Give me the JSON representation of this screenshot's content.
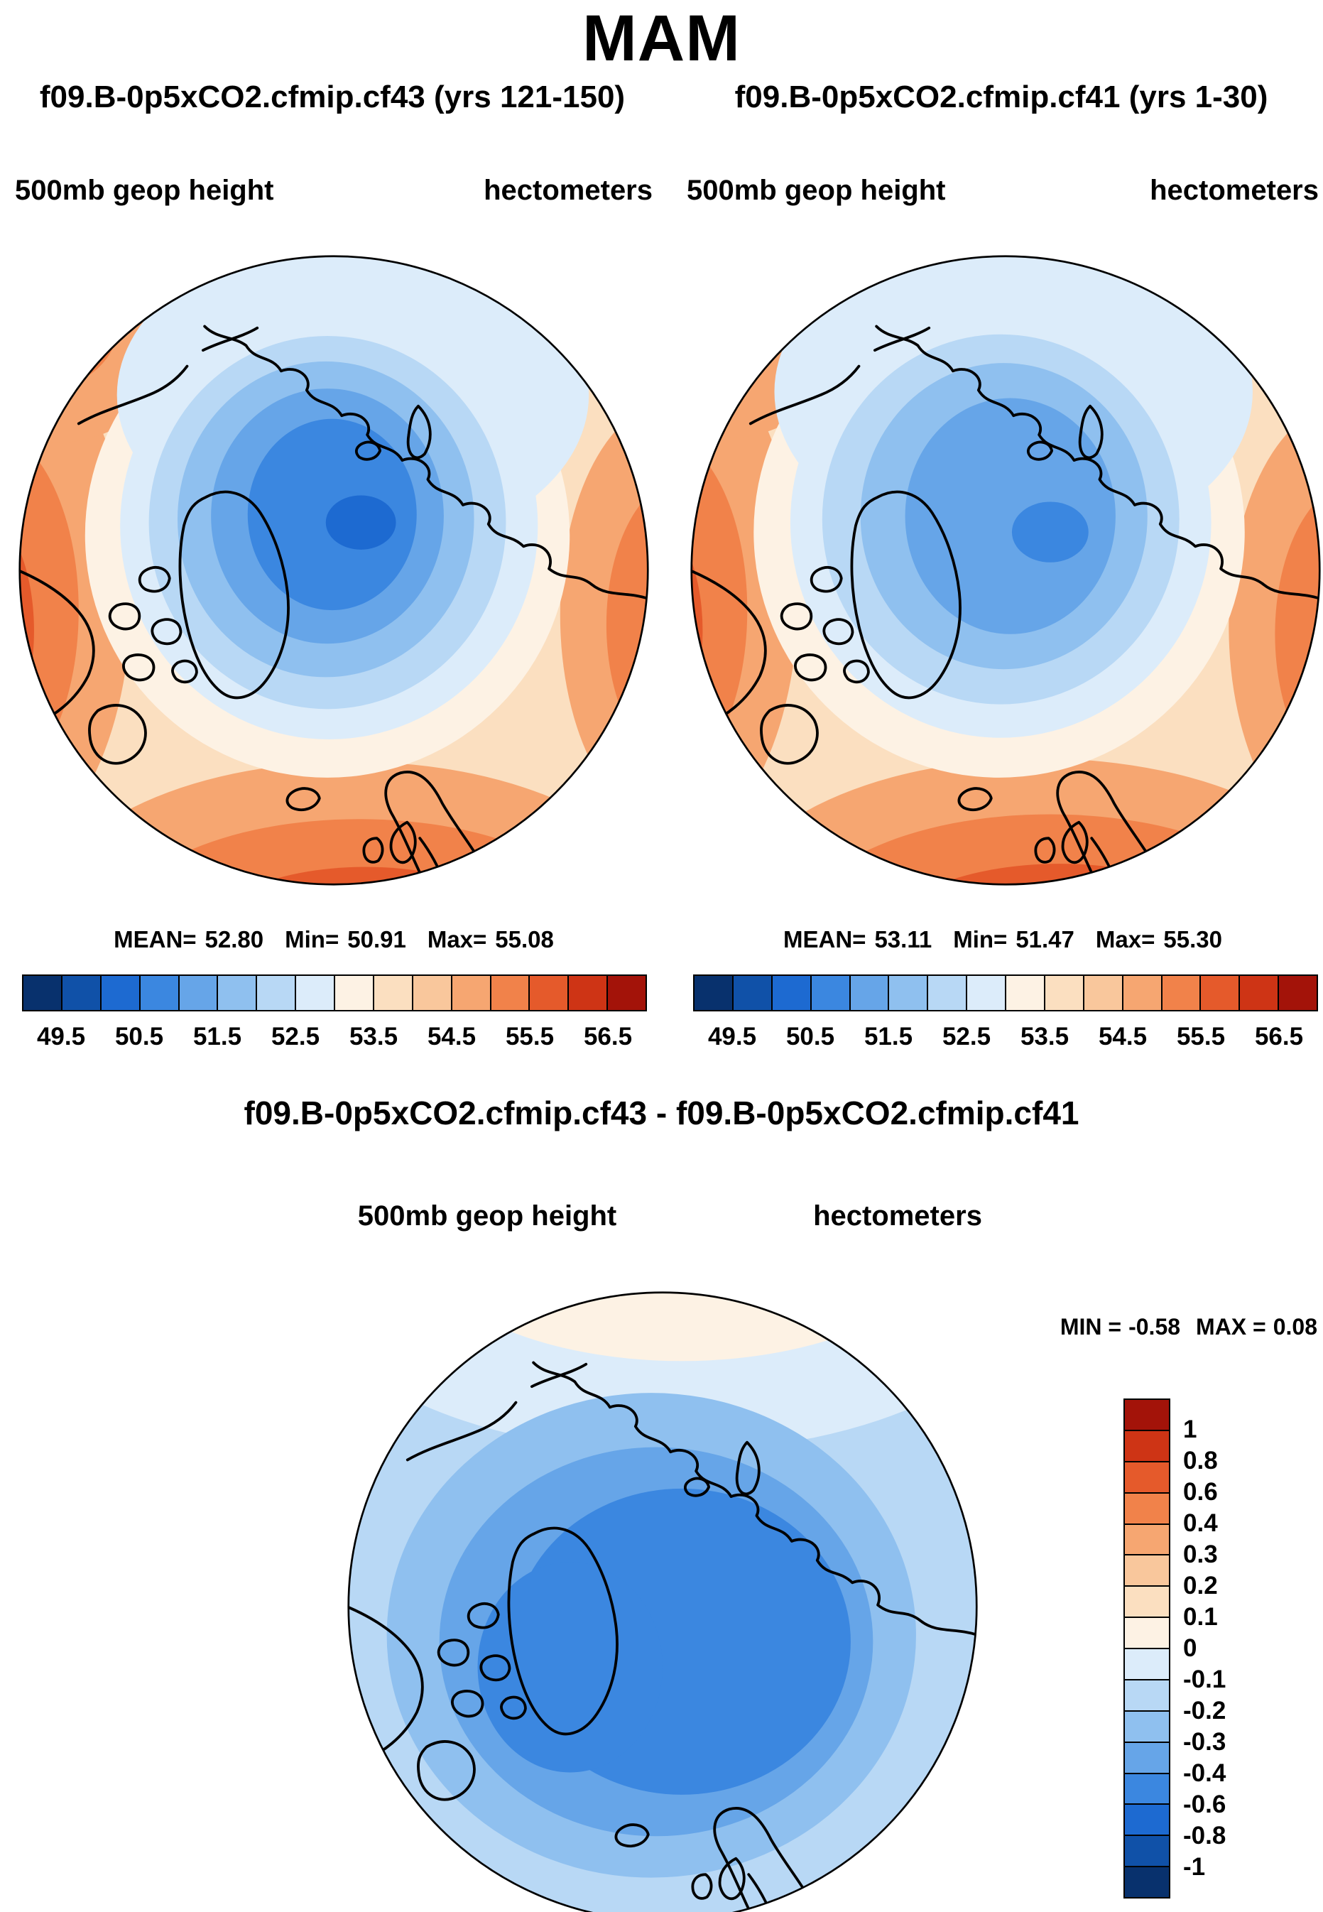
{
  "page_title": "MAM",
  "panels": [
    {
      "subtitle": "f09.B-0p5xCO2.cfmip.cf43 (yrs 121-150)",
      "field_label": "500mb geop height",
      "units_label": "hectometers",
      "stats": {
        "mean_label": "MEAN=",
        "mean": "52.80",
        "min_label": "Min=",
        "min": "50.91",
        "max_label": "Max=",
        "max": "55.08"
      }
    },
    {
      "subtitle": "f09.B-0p5xCO2.cfmip.cf41 (yrs 1-30)",
      "field_label": "500mb geop height",
      "units_label": "hectometers",
      "stats": {
        "mean_label": "MEAN=",
        "mean": "53.11",
        "min_label": "Min=",
        "min": "51.47",
        "max_label": "Max=",
        "max": "55.30"
      }
    }
  ],
  "colorbar": {
    "colors": [
      "#08316d",
      "#1051a8",
      "#1d6ad1",
      "#3b87e0",
      "#66a5e8",
      "#8fc0ef",
      "#b8d8f5",
      "#dcecfa",
      "#fdf2e4",
      "#fbdfc0",
      "#f9c79c",
      "#f6a671",
      "#f1824a",
      "#e55a2b",
      "#ce3415",
      "#a31309"
    ],
    "tick_labels": [
      "49.5",
      "50.5",
      "51.5",
      "52.5",
      "53.5",
      "54.5",
      "55.5",
      "56.5"
    ]
  },
  "diff_panel": {
    "title": "f09.B-0p5xCO2.cfmip.cf43 - f09.B-0p5xCO2.cfmip.cf41",
    "field_label": "500mb geop height",
    "units_label": "hectometers",
    "min_label": "MIN =",
    "min": "-0.58",
    "max_label": "MAX =",
    "max": "0.08",
    "colorbar": {
      "colors": [
        "#a31309",
        "#ce3415",
        "#e55a2b",
        "#f1824a",
        "#f6a671",
        "#f9c79c",
        "#fbdfc0",
        "#fdf2e4",
        "#dcecfa",
        "#b8d8f5",
        "#8fc0ef",
        "#66a5e8",
        "#3b87e0",
        "#1d6ad1",
        "#1051a8",
        "#08316d"
      ],
      "tick_labels": [
        "1",
        "0.8",
        "0.6",
        "0.4",
        "0.3",
        "0.2",
        "0.1",
        "0",
        "-0.1",
        "-0.2",
        "-0.3",
        "-0.4",
        "-0.6",
        "-0.8",
        "-1"
      ]
    }
  },
  "chart_data": [
    {
      "type": "heatmap",
      "subtype": "filled-contour-polar-map",
      "season": "MAM",
      "title": "f09.B-0p5xCO2.cfmip.cf43 (yrs 121-150)",
      "variable": "500mb geop height",
      "units": "hectometers",
      "projection": "north-polar-stereographic",
      "mean": 52.8,
      "min": 50.91,
      "max": 55.08,
      "contour_levels": [
        49.5,
        50.0,
        50.5,
        51.0,
        51.5,
        52.0,
        52.5,
        53.0,
        53.5,
        54.0,
        54.5,
        55.0,
        55.5,
        56.0,
        56.5
      ],
      "labeled_levels": [
        49.5,
        50.5,
        51.5,
        52.5,
        53.5,
        54.5,
        55.5,
        56.5
      ],
      "legend_position": "bottom",
      "notes": "Low geopotential height (blue) centered near the pole, high values (orange/red) around the mid-latitude rim"
    },
    {
      "type": "heatmap",
      "subtype": "filled-contour-polar-map",
      "season": "MAM",
      "title": "f09.B-0p5xCO2.cfmip.cf41 (yrs 1-30)",
      "variable": "500mb geop height",
      "units": "hectometers",
      "projection": "north-polar-stereographic",
      "mean": 53.11,
      "min": 51.47,
      "max": 55.3,
      "contour_levels": [
        49.5,
        50.0,
        50.5,
        51.0,
        51.5,
        52.0,
        52.5,
        53.0,
        53.5,
        54.0,
        54.5,
        55.0,
        55.5,
        56.0,
        56.5
      ],
      "labeled_levels": [
        49.5,
        50.5,
        51.5,
        52.5,
        53.5,
        54.5,
        55.5,
        56.5
      ],
      "legend_position": "bottom",
      "notes": "Same pattern as cf43 but weaker polar low (higher minimum)"
    },
    {
      "type": "heatmap",
      "subtype": "filled-contour-polar-map",
      "season": "MAM",
      "title": "f09.B-0p5xCO2.cfmip.cf43 - f09.B-0p5xCO2.cfmip.cf41",
      "variable": "500mb geop height",
      "units": "hectometers",
      "projection": "north-polar-stereographic",
      "min": -0.58,
      "max": 0.08,
      "contour_levels": [
        -1,
        -0.8,
        -0.6,
        -0.4,
        -0.3,
        -0.2,
        -0.1,
        0,
        0.1,
        0.2,
        0.3,
        0.4,
        0.6,
        0.8,
        1
      ],
      "legend_position": "right",
      "notes": "Difference field negative (blue) nearly everywhere, deepest near the pole; slightly positive (cream) at the map edge near the top"
    }
  ]
}
